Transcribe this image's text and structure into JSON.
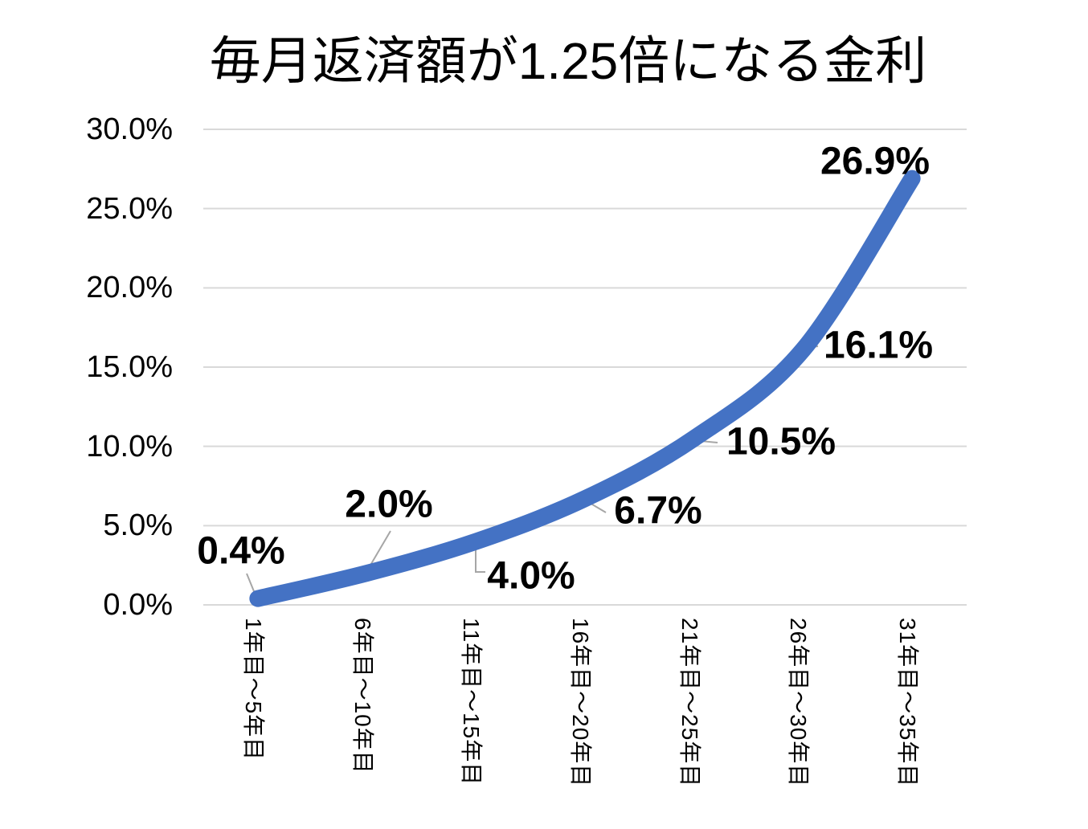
{
  "chart_data": {
    "type": "line",
    "title": "毎月返済額が1.25倍になる金利",
    "categories": [
      "1年目〜5年目",
      "6年目〜10年目",
      "11年目〜15年目",
      "16年目〜20年目",
      "21年目〜25年目",
      "26年目〜30年目",
      "31年目〜35年目"
    ],
    "values": [
      0.4,
      2.0,
      4.0,
      6.7,
      10.5,
      16.1,
      26.9
    ],
    "data_labels": [
      "0.4%",
      "2.0%",
      "4.0%",
      "6.7%",
      "10.5%",
      "16.1%",
      "26.9%"
    ],
    "y_ticks": [
      "0.0%",
      "5.0%",
      "10.0%",
      "15.0%",
      "20.0%",
      "25.0%",
      "30.0%"
    ],
    "y_tick_values": [
      0,
      5,
      10,
      15,
      20,
      25,
      30
    ],
    "ylim": [
      0,
      30
    ],
    "xlabel": "",
    "ylabel": "",
    "grid": true,
    "legend": "none",
    "smoothed": true,
    "colors": {
      "series": "#4472C4",
      "gridline": "#D9D9D9",
      "leader_line": "#A6A6A6",
      "text": "#000000",
      "background": "#FFFFFF"
    }
  }
}
